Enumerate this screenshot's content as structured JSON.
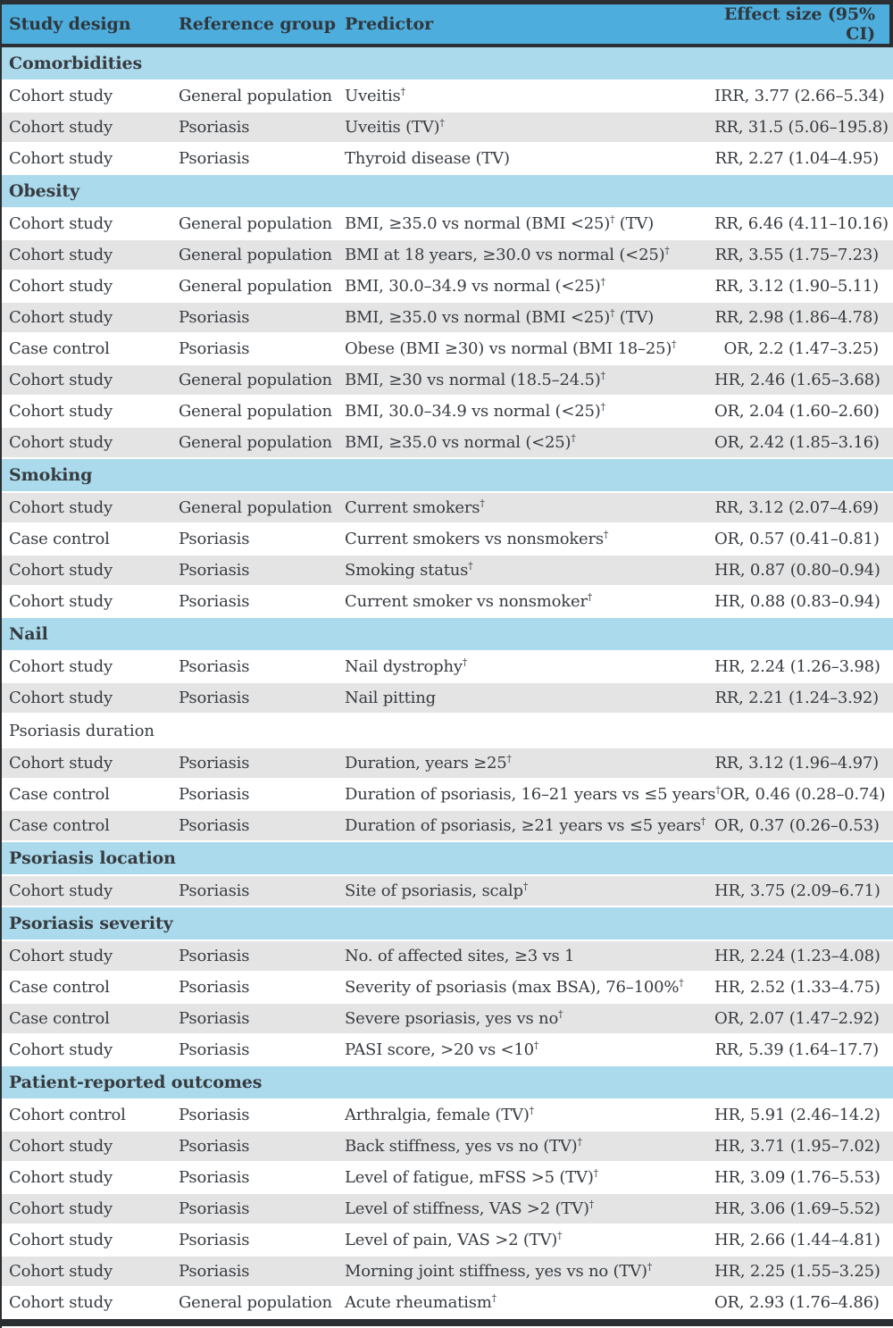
{
  "colors": {
    "header-blue": "#4daddc",
    "section-blue": "#abdaec",
    "row-gray": "#e4e4e4",
    "border-dark": "#2b2f33",
    "text": "#363b40"
  },
  "table": {
    "columns": [
      "Study design",
      "Reference group",
      "Predictor",
      "Effect size (95% CI)"
    ],
    "sections": [
      {
        "label": "Comorbidities",
        "style": "blue",
        "rows": [
          {
            "design": "Cohort study",
            "reference": "General population",
            "predictor": "Uveitis†",
            "effect": "IRR, 3.77 (2.66–5.34)",
            "shaded": false
          },
          {
            "design": "Cohort study",
            "reference": "Psoriasis",
            "predictor": "Uveitis (TV)†",
            "effect": "RR, 31.5 (5.06–195.8)",
            "shaded": true
          },
          {
            "design": "Cohort study",
            "reference": "Psoriasis",
            "predictor": "Thyroid disease (TV)",
            "effect": "RR, 2.27 (1.04–4.95)",
            "shaded": false
          }
        ]
      },
      {
        "label": "Obesity",
        "style": "blue",
        "rows": [
          {
            "design": "Cohort study",
            "reference": "General population",
            "predictor": "BMI, ≥35.0 vs normal (BMI <25)† (TV)",
            "effect": "RR, 6.46 (4.11–10.16)",
            "shaded": false
          },
          {
            "design": "Cohort study",
            "reference": "General population",
            "predictor": "BMI at 18 years, ≥30.0 vs normal (<25)†",
            "effect": "RR, 3.55 (1.75–7.23)",
            "shaded": true
          },
          {
            "design": "Cohort study",
            "reference": "General population",
            "predictor": "BMI, 30.0–34.9 vs normal (<25)†",
            "effect": "RR, 3.12 (1.90–5.11)",
            "shaded": false
          },
          {
            "design": "Cohort study",
            "reference": "Psoriasis",
            "predictor": "BMI, ≥35.0 vs normal (BMI <25)† (TV)",
            "effect": "RR, 2.98 (1.86–4.78)",
            "shaded": true
          },
          {
            "design": "Case control",
            "reference": "Psoriasis",
            "predictor": "Obese (BMI ≥30) vs normal (BMI 18–25)†",
            "effect": "OR, 2.2 (1.47–3.25)",
            "shaded": false
          },
          {
            "design": "Cohort study",
            "reference": "General population",
            "predictor": "BMI, ≥30 vs normal (18.5–24.5)†",
            "effect": "HR, 2.46 (1.65–3.68)",
            "shaded": true
          },
          {
            "design": "Cohort study",
            "reference": "General population",
            "predictor": "BMI, 30.0–34.9 vs normal (<25)†",
            "effect": "OR, 2.04 (1.60–2.60)",
            "shaded": false
          },
          {
            "design": "Cohort study",
            "reference": "General population",
            "predictor": "BMI, ≥35.0 vs normal (<25)†",
            "effect": "OR, 2.42 (1.85–3.16)",
            "shaded": true
          }
        ]
      },
      {
        "label": "Smoking",
        "style": "blue",
        "rows": [
          {
            "design": "Cohort study",
            "reference": "General population",
            "predictor": "Current smokers†",
            "effect": "RR, 3.12 (2.07–4.69)",
            "shaded": true
          },
          {
            "design": "Case control",
            "reference": "Psoriasis",
            "predictor": "Current smokers vs nonsmokers†",
            "effect": "OR, 0.57 (0.41–0.81)",
            "shaded": false
          },
          {
            "design": "Cohort study",
            "reference": "Psoriasis",
            "predictor": "Smoking status†",
            "effect": "HR, 0.87 (0.80–0.94)",
            "shaded": true
          },
          {
            "design": "Cohort study",
            "reference": "Psoriasis",
            "predictor": "Current smoker vs nonsmoker†",
            "effect": "HR, 0.88 (0.83–0.94)",
            "shaded": false
          }
        ]
      },
      {
        "label": "Nail",
        "style": "blue",
        "rows": [
          {
            "design": "Cohort study",
            "reference": "Psoriasis",
            "predictor": "Nail dystrophy†",
            "effect": "HR, 2.24 (1.26–3.98)",
            "shaded": false
          },
          {
            "design": "Cohort study",
            "reference": "Psoriasis",
            "predictor": "Nail pitting",
            "effect": "RR, 2.21 (1.24–3.92)",
            "shaded": true
          }
        ]
      },
      {
        "label": "Psoriasis duration",
        "style": "plain",
        "rows": [
          {
            "design": "Cohort study",
            "reference": "Psoriasis",
            "predictor": "Duration, years ≥25†",
            "effect": "RR, 3.12 (1.96–4.97)",
            "shaded": true
          },
          {
            "design": "Case control",
            "reference": "Psoriasis",
            "predictor": "Duration of psoriasis, 16–21 years vs ≤5 years†",
            "effect": "OR, 0.46 (0.28–0.74)",
            "shaded": false
          },
          {
            "design": "Case control",
            "reference": "Psoriasis",
            "predictor": "Duration of psoriasis, ≥21 years vs ≤5 years†",
            "effect": "OR, 0.37 (0.26–0.53)",
            "shaded": true
          }
        ]
      },
      {
        "label": "Psoriasis location",
        "style": "blue",
        "rows": [
          {
            "design": "Cohort study",
            "reference": "Psoriasis",
            "predictor": "Site of psoriasis, scalp†",
            "effect": "HR, 3.75 (2.09–6.71)",
            "shaded": true
          }
        ]
      },
      {
        "label": "Psoriasis severity",
        "style": "blue",
        "rows": [
          {
            "design": "Cohort study",
            "reference": "Psoriasis",
            "predictor": "No. of affected sites, ≥3 vs 1",
            "effect": "HR, 2.24 (1.23–4.08)",
            "shaded": true
          },
          {
            "design": "Case control",
            "reference": "Psoriasis",
            "predictor": "Severity of psoriasis (max BSA), 76–100%†",
            "effect": "HR, 2.52 (1.33–4.75)",
            "shaded": false
          },
          {
            "design": "Case control",
            "reference": "Psoriasis",
            "predictor": "Severe psoriasis, yes vs no†",
            "effect": "OR, 2.07 (1.47–2.92)",
            "shaded": true
          },
          {
            "design": "Cohort study",
            "reference": "Psoriasis",
            "predictor": "PASI score, >20 vs <10†",
            "effect": "RR, 5.39 (1.64–17.7)",
            "shaded": false
          }
        ]
      },
      {
        "label": "Patient-reported outcomes",
        "style": "blue",
        "rows": [
          {
            "design": "Cohort control",
            "reference": "Psoriasis",
            "predictor": "Arthralgia, female (TV)†",
            "effect": "HR, 5.91 (2.46–14.2)",
            "shaded": false
          },
          {
            "design": "Cohort study",
            "reference": "Psoriasis",
            "predictor": "Back stiffness, yes vs no (TV)†",
            "effect": "HR, 3.71 (1.95–7.02)",
            "shaded": true
          },
          {
            "design": "Cohort study",
            "reference": "Psoriasis",
            "predictor": "Level of fatigue, mFSS >5 (TV)†",
            "effect": "HR, 3.09 (1.76–5.53)",
            "shaded": false
          },
          {
            "design": "Cohort study",
            "reference": "Psoriasis",
            "predictor": "Level of stiffness, VAS >2 (TV)†",
            "effect": "HR, 3.06 (1.69–5.52)",
            "shaded": true
          },
          {
            "design": "Cohort study",
            "reference": "Psoriasis",
            "predictor": "Level of pain, VAS >2 (TV)†",
            "effect": "HR, 2.66 (1.44–4.81)",
            "shaded": false
          },
          {
            "design": "Cohort study",
            "reference": "Psoriasis",
            "predictor": "Morning joint stiffness, yes vs no (TV)†",
            "effect": "HR, 2.25 (1.55–3.25)",
            "shaded": true
          },
          {
            "design": "Cohort study",
            "reference": "General population",
            "predictor": "Acute rheumatism†",
            "effect": "OR, 2.93 (1.76–4.86)",
            "shaded": false
          }
        ]
      }
    ]
  }
}
